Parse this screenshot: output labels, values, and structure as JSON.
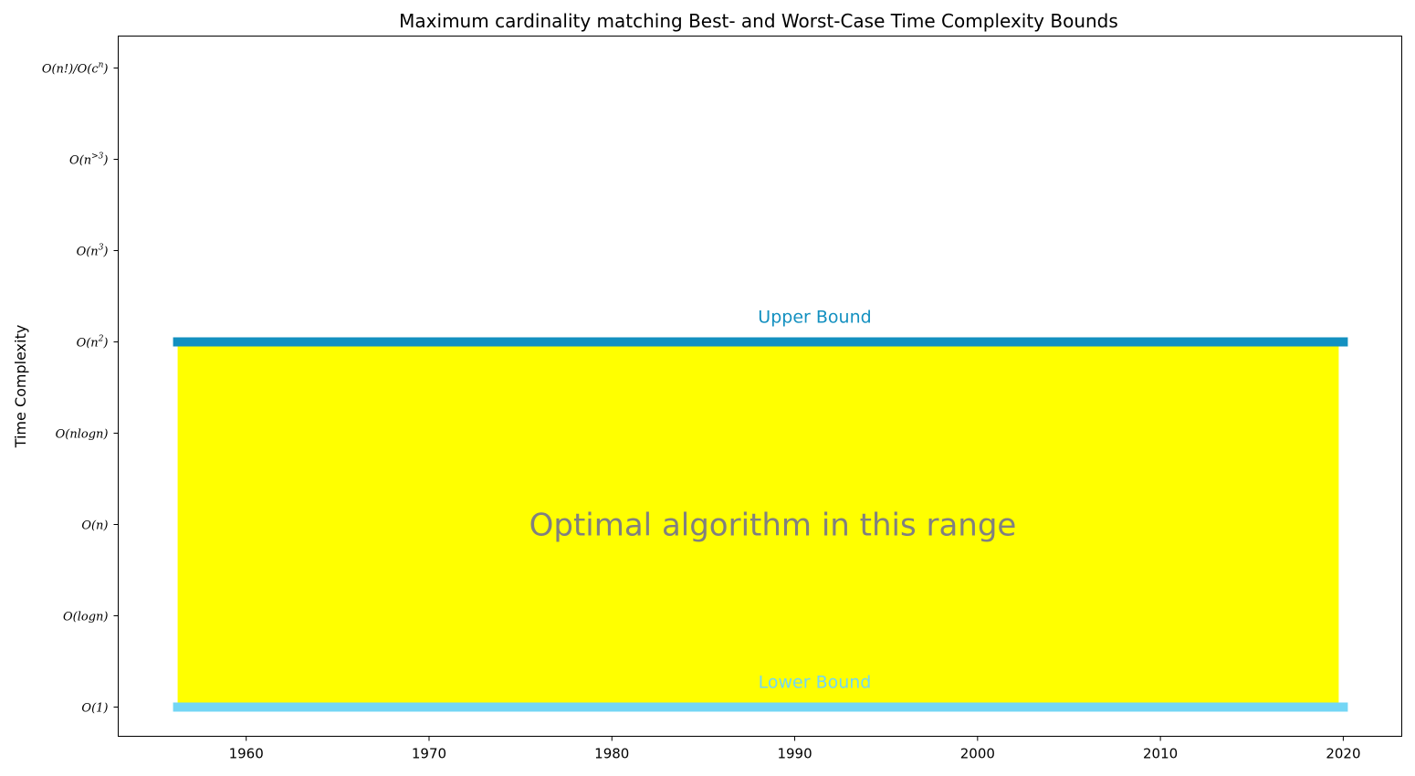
{
  "chart_data": {
    "type": "area",
    "title": "Maximum cardinality matching Best- and Worst-Case Time Complexity Bounds",
    "ylabel": "Time Complexity",
    "xlim": [
      1953,
      2023.2
    ],
    "x_ticks": [
      1960,
      1970,
      1980,
      1990,
      2000,
      2010,
      2020
    ],
    "y_levels": [
      {
        "rank": 0,
        "base": "O(1)",
        "sup": "",
        "tail": ""
      },
      {
        "rank": 1,
        "base": "O(logn)",
        "sup": "",
        "tail": ""
      },
      {
        "rank": 2,
        "base": "O(n)",
        "sup": "",
        "tail": ""
      },
      {
        "rank": 3,
        "base": "O(nlogn)",
        "sup": "",
        "tail": ""
      },
      {
        "rank": 4,
        "base": "O(n",
        "sup": "2",
        "tail": ")"
      },
      {
        "rank": 5,
        "base": "O(n",
        "sup": "3",
        "tail": ")"
      },
      {
        "rank": 6,
        "base": "O(n",
        "sup": ">3",
        "tail": ")"
      },
      {
        "rank": 7,
        "base": "O(n!)/O(c",
        "sup": "n",
        "tail": ")"
      }
    ],
    "ylim": [
      -0.32,
      7.35
    ],
    "x_range": [
      1956,
      2020
    ],
    "upper_bound": {
      "label": "Upper Bound",
      "level": 4,
      "color": "#1390c0"
    },
    "lower_bound": {
      "label": "Lower Bound",
      "level": 0,
      "color": "#73d6f5"
    },
    "fill": {
      "color": "#ffff00",
      "label": "Optimal algorithm in this range"
    }
  }
}
